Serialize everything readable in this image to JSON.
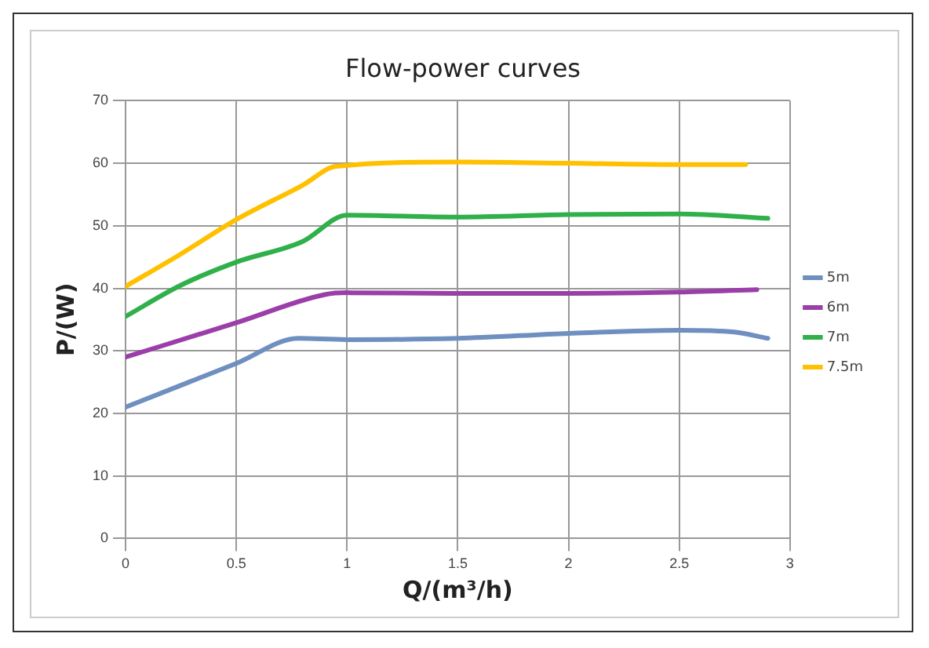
{
  "chart_data": {
    "type": "line",
    "title": "Flow-power curves",
    "xlabel": "Q/(m³/h)",
    "ylabel": "P/(W)",
    "xlim": [
      0,
      3
    ],
    "xticks": [
      0,
      0.5,
      1,
      1.5,
      2,
      2.5,
      3
    ],
    "ylim": [
      0,
      70
    ],
    "yticks": [
      0,
      10,
      20,
      30,
      40,
      50,
      60,
      70
    ],
    "grid": true,
    "legend": "right",
    "marker": "none",
    "line_style": "solid",
    "series": [
      {
        "name": "5m",
        "color": "#6f8fc0",
        "x": [
          0,
          0.25,
          0.5,
          0.78,
          1,
          1.5,
          2,
          2.5,
          2.75,
          2.9
        ],
        "values": [
          21,
          24.5,
          28,
          32,
          31.8,
          32,
          32.8,
          33.3,
          33,
          32
        ]
      },
      {
        "name": "6m",
        "color": "#9b3fa8",
        "x": [
          0,
          0.5,
          0.9,
          1,
          1.5,
          2,
          2.5,
          2.85
        ],
        "values": [
          29,
          34.5,
          39,
          39.3,
          39.2,
          39.2,
          39.4,
          39.8
        ]
      },
      {
        "name": "7m",
        "color": "#2fb04a",
        "x": [
          0,
          0.25,
          0.5,
          0.8,
          1,
          1.5,
          2,
          2.5,
          2.9
        ],
        "values": [
          35.5,
          40.5,
          44.2,
          47.5,
          51.7,
          51.4,
          51.8,
          51.9,
          51.2
        ]
      },
      {
        "name": "7.5m",
        "color": "#ffc000",
        "x": [
          0,
          0.25,
          0.5,
          0.8,
          0.95,
          1.5,
          2,
          2.5,
          2.8
        ],
        "values": [
          40.3,
          45.5,
          51,
          56.5,
          59.5,
          60.2,
          60,
          59.8,
          59.8
        ]
      }
    ]
  }
}
